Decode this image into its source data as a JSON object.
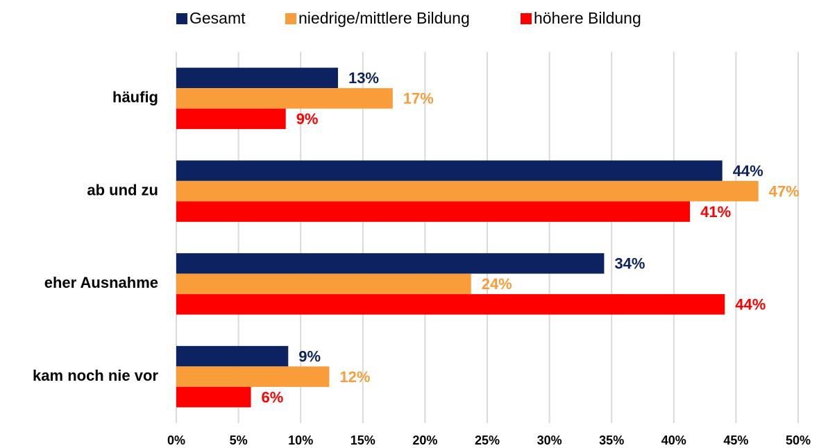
{
  "chart_data": {
    "type": "bar",
    "orientation": "horizontal",
    "categories": [
      "häufig",
      "ab und zu",
      "eher Ausnahme",
      "kam noch nie vor"
    ],
    "series": [
      {
        "name": "Gesamt",
        "color": "#0d2260",
        "values": [
          13.0,
          43.9,
          34.4,
          9.0
        ],
        "value_labels": [
          "13%",
          "44%",
          "34%",
          "9%"
        ]
      },
      {
        "name": "niedrige/mittlere Bildung",
        "color": "#f99d3a",
        "values": [
          17.4,
          46.8,
          23.7,
          12.3
        ],
        "value_labels": [
          "17%",
          "47%",
          "24%",
          "12%"
        ]
      },
      {
        "name": "höhere Bildung",
        "color": "#ff0000",
        "values": [
          8.8,
          41.3,
          44.1,
          6.0
        ],
        "value_labels": [
          "9%",
          "41%",
          "44%",
          "6%"
        ]
      }
    ],
    "xlim": [
      0,
      50
    ],
    "xticks": [
      {
        "value": 0,
        "label": "0%"
      },
      {
        "value": 5,
        "label": "5%"
      },
      {
        "value": 10,
        "label": "10%"
      },
      {
        "value": 15,
        "label": "15%"
      },
      {
        "value": 20,
        "label": "20%"
      },
      {
        "value": 25,
        "label": "25%"
      },
      {
        "value": 30,
        "label": "30%"
      },
      {
        "value": 35,
        "label": "35%"
      },
      {
        "value": 40,
        "label": "40%"
      },
      {
        "value": 45,
        "label": "45%"
      },
      {
        "value": 50,
        "label": "50%"
      }
    ],
    "grid": true,
    "legend": "top"
  }
}
